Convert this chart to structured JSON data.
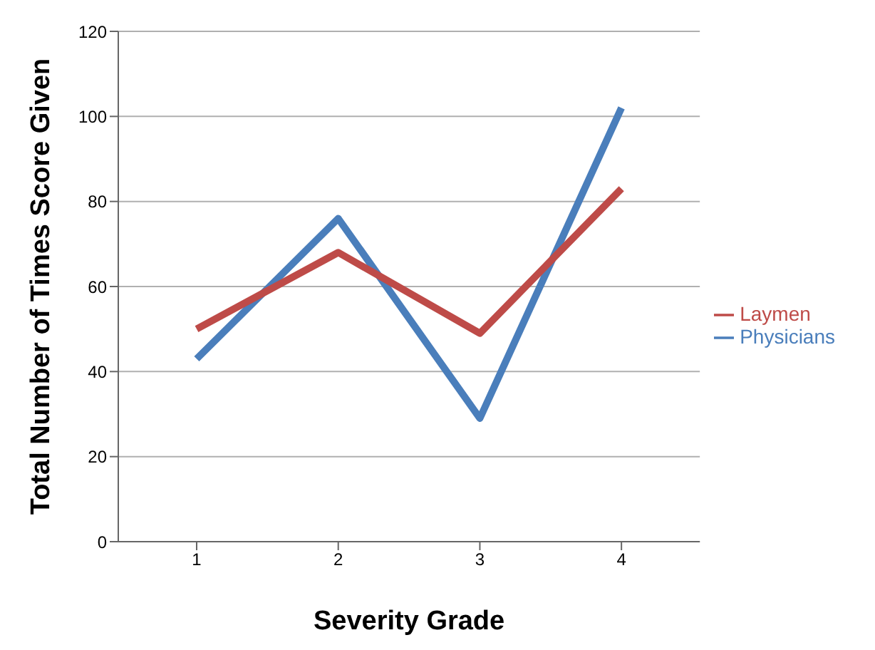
{
  "chart_data": {
    "type": "line",
    "xlabel": "Severity Grade",
    "ylabel": "Total Number of Times Score Given",
    "categories": [
      "1",
      "2",
      "3",
      "4"
    ],
    "series": [
      {
        "name": "Physicians",
        "color": "#4a7ebb",
        "values": [
          43,
          76,
          29,
          102
        ]
      },
      {
        "name": "Laymen",
        "color": "#be4b48",
        "values": [
          50,
          68,
          49,
          83
        ]
      }
    ],
    "ylim": [
      0,
      120
    ],
    "yticks": [
      0,
      20,
      40,
      60,
      80,
      100,
      120
    ],
    "grid": "y",
    "legend": "right",
    "marker": "none",
    "line_style": "solid"
  }
}
